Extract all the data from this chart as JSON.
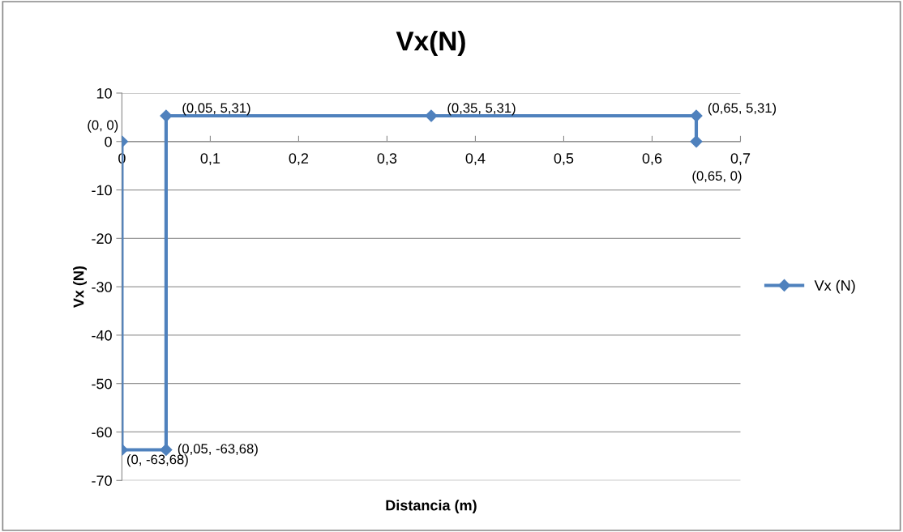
{
  "chart_data": {
    "type": "line",
    "title": "Vx(N)",
    "xlabel": "Distancia (m)",
    "ylabel": "Vx (N)",
    "series": [
      {
        "name": "Vx (N)",
        "color": "#4f81bd",
        "x": [
          0,
          0,
          0.05,
          0.05,
          0.35,
          0.65,
          0.65
        ],
        "values": [
          0,
          -63.68,
          -63.68,
          5.31,
          5.31,
          5.31,
          0
        ],
        "value_labels": [
          "(0, 0)",
          "(0, -63,68)",
          "(0,05, -63,68)",
          "(0,05, 5,31)",
          "(0,35, 5,31)",
          "(0,65, 5,31)",
          "(0,65, 0)"
        ]
      }
    ],
    "xlim": [
      0,
      0.7
    ],
    "xticks": [
      0,
      {
        "value": 0.1,
        "label": "0,1"
      },
      {
        "value": 0.2,
        "label": "0,2"
      },
      {
        "value": 0.3,
        "label": "0,3"
      },
      {
        "value": 0.4,
        "label": "0,4"
      },
      {
        "value": 0.5,
        "label": "0,5"
      },
      {
        "value": 0.6,
        "label": "0,6"
      },
      {
        "value": 0.7,
        "label": "0,7"
      }
    ],
    "ylim": [
      -70,
      10
    ],
    "yticks": [
      -70,
      -60,
      -50,
      -40,
      -30,
      -20,
      -10,
      0,
      10
    ],
    "grid": "y",
    "legend": "right",
    "marker": "diamond",
    "line_style": "solid"
  }
}
